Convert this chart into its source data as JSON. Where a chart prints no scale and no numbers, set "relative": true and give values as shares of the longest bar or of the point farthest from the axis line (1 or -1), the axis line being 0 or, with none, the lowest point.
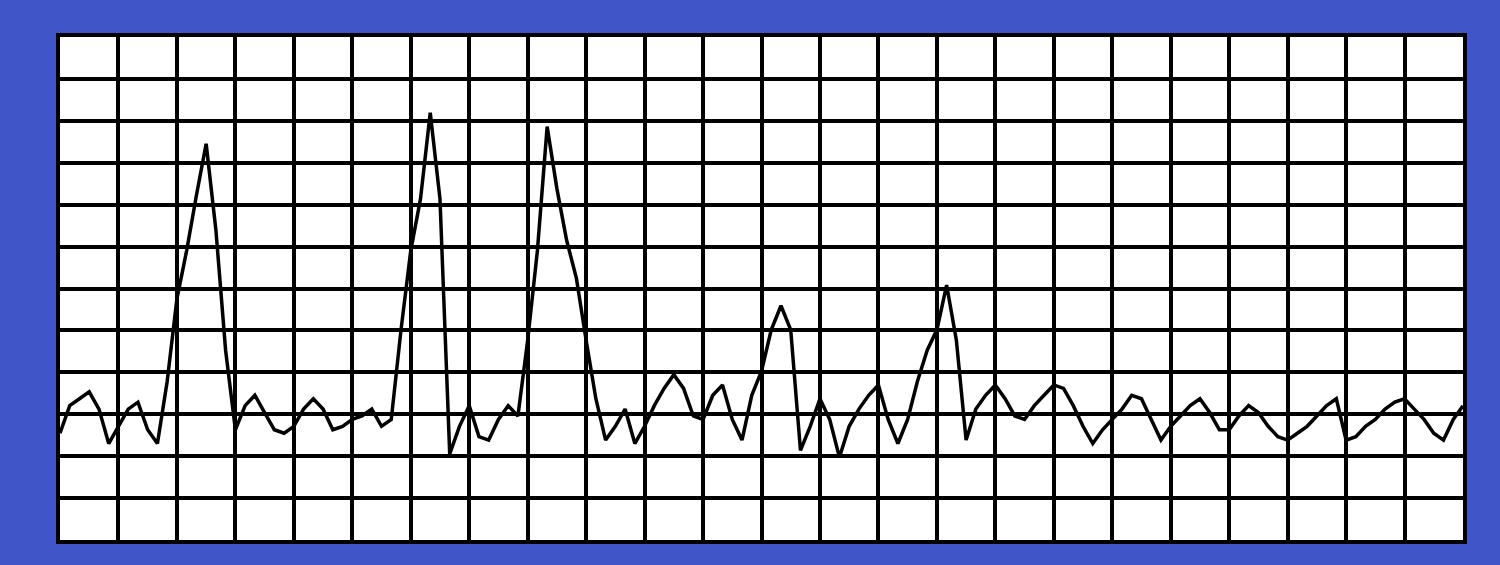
{
  "chart_data": {
    "type": "line",
    "relative": true,
    "grid": true,
    "marker": "none",
    "line_style": "solid",
    "categories": [
      null,
      null,
      null,
      null,
      null,
      null,
      null,
      null,
      null,
      null,
      null,
      null,
      null,
      null,
      null,
      null,
      null,
      null,
      null,
      null,
      null,
      null,
      null,
      null,
      null,
      null,
      null,
      null,
      null,
      null,
      null,
      null,
      null,
      null,
      null,
      null,
      null,
      null,
      null,
      null,
      null,
      null,
      null,
      null,
      null,
      null,
      null,
      null,
      null,
      null,
      null,
      null,
      null,
      null,
      null,
      null,
      null,
      null,
      null,
      null,
      null,
      null,
      null,
      null,
      null,
      null,
      null,
      null,
      null,
      null,
      null,
      null,
      null,
      null,
      null,
      null,
      null,
      null,
      null,
      null,
      null,
      null,
      null,
      null,
      null,
      null,
      null,
      null,
      null,
      null,
      null,
      null,
      null,
      null,
      null,
      null,
      null,
      null,
      null,
      null,
      null,
      null,
      null,
      null,
      null,
      null,
      null,
      null,
      null,
      null,
      null,
      null,
      null,
      null,
      null,
      null,
      null,
      null,
      null,
      null,
      null,
      null,
      null,
      null,
      null,
      null,
      null,
      null,
      null,
      null,
      null,
      null,
      null,
      null,
      null,
      null,
      null,
      null,
      null,
      null,
      null,
      null,
      null,
      null,
      null
    ],
    "series": [
      {
        "color": "#000000",
        "values": [
          0.07,
          0.15,
          0.17,
          0.19,
          0.14,
          0.04,
          0.09,
          0.14,
          0.16,
          0.08,
          0.04,
          0.22,
          0.46,
          0.6,
          0.76,
          0.91,
          0.66,
          0.31,
          0.08,
          0.15,
          0.18,
          0.13,
          0.08,
          0.07,
          0.09,
          0.14,
          0.17,
          0.14,
          0.08,
          0.09,
          0.11,
          0.12,
          0.14,
          0.09,
          0.11,
          0.37,
          0.6,
          0.75,
          1.0,
          0.75,
          0.01,
          0.09,
          0.15,
          0.06,
          0.05,
          0.11,
          0.15,
          0.12,
          0.34,
          0.6,
          0.96,
          0.78,
          0.63,
          0.52,
          0.34,
          0.17,
          0.05,
          0.09,
          0.14,
          0.04,
          0.09,
          0.15,
          0.2,
          0.24,
          0.2,
          0.12,
          0.11,
          0.18,
          0.21,
          0.11,
          0.05,
          0.18,
          0.25,
          0.37,
          0.44,
          0.37,
          0.02,
          0.09,
          0.17,
          0.11,
          0.0,
          0.09,
          0.14,
          0.18,
          0.21,
          0.11,
          0.04,
          0.11,
          0.22,
          0.31,
          0.37,
          0.5,
          0.34,
          0.05,
          0.14,
          0.18,
          0.21,
          0.17,
          0.12,
          0.11,
          0.15,
          0.18,
          0.21,
          0.2,
          0.15,
          0.09,
          0.04,
          0.08,
          0.11,
          0.14,
          0.18,
          0.17,
          0.11,
          0.05,
          0.09,
          0.12,
          0.15,
          0.17,
          0.13,
          0.08,
          0.08,
          0.12,
          0.15,
          0.13,
          0.09,
          0.06,
          0.05,
          0.07,
          0.09,
          0.12,
          0.15,
          0.17,
          0.05,
          0.06,
          0.09,
          0.11,
          0.14,
          0.16,
          0.17,
          0.14,
          0.11,
          0.07,
          0.05,
          0.11,
          0.15
        ]
      }
    ]
  }
}
